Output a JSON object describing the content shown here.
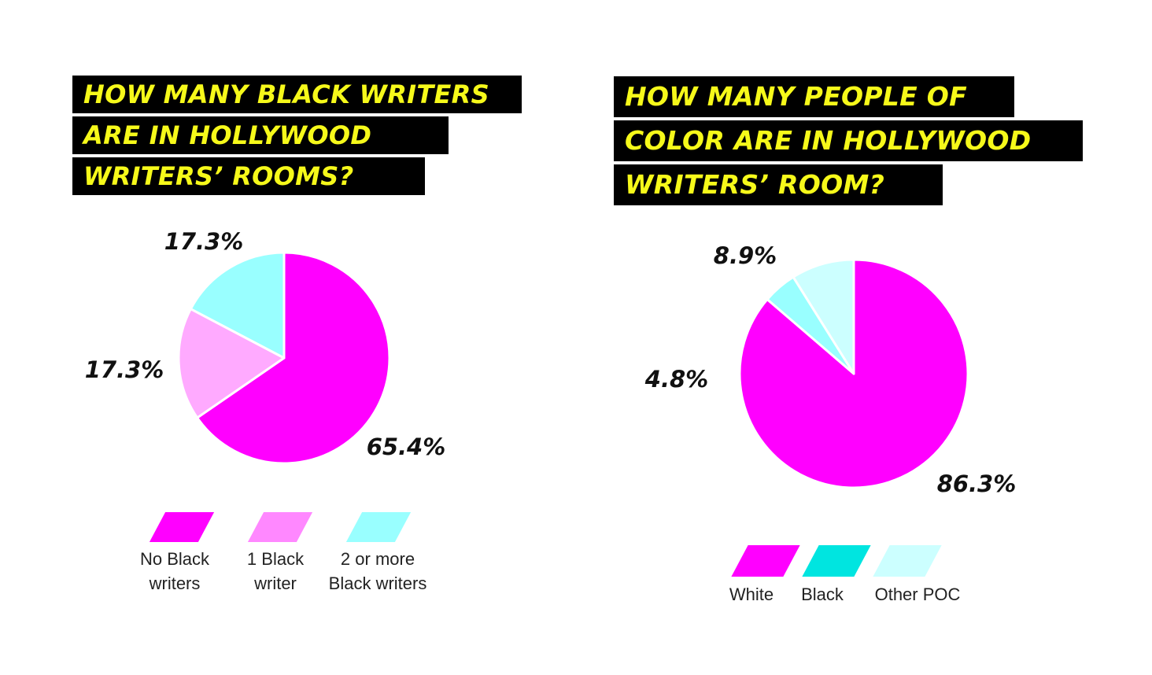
{
  "chart_data": [
    {
      "type": "pie",
      "title": "HOW MANY BLACK WRITERS ARE IN HOLLYWOOD WRITERS’ ROOMS?",
      "title_lines": [
        "HOW MANY BLACK WRITERS",
        "ARE IN HOLLYWOOD",
        "WRITERS’ ROOMS?"
      ],
      "categories": [
        "No Black writers",
        "1 Black writer",
        "2 or more Black writers"
      ],
      "values": [
        65.4,
        17.3,
        17.3
      ],
      "value_labels": [
        "65.4%",
        "17.3%",
        "17.3%"
      ],
      "colors": [
        "#ff00ff",
        "#ffaaff",
        "#99ffff"
      ],
      "legend_labels": [
        "No Black\nwriters",
        "1 Black\nwriter",
        "2 or more\nBlack writers"
      ],
      "legend_colors": [
        "#ff00ff",
        "#ff88ff",
        "#99ffff"
      ],
      "legend": "bottom"
    },
    {
      "type": "pie",
      "title": "HOW MANY PEOPLE OF COLOR ARE IN HOLLYWOOD WRITERS’ ROOM?",
      "title_lines": [
        "HOW MANY PEOPLE OF",
        "COLOR ARE IN HOLLYWOOD",
        "WRITERS’ ROOM?"
      ],
      "categories": [
        "White",
        "Black",
        "Other POC"
      ],
      "values": [
        86.3,
        4.8,
        8.9
      ],
      "value_labels": [
        "86.3%",
        "4.8%",
        "8.9%"
      ],
      "colors": [
        "#ff00ff",
        "#99ffff",
        "#ccffff"
      ],
      "legend_labels": [
        "White",
        "Black",
        "Other POC"
      ],
      "legend_colors": [
        "#ff00ff",
        "#00e5e0",
        "#ccffff"
      ],
      "legend": "bottom"
    }
  ]
}
